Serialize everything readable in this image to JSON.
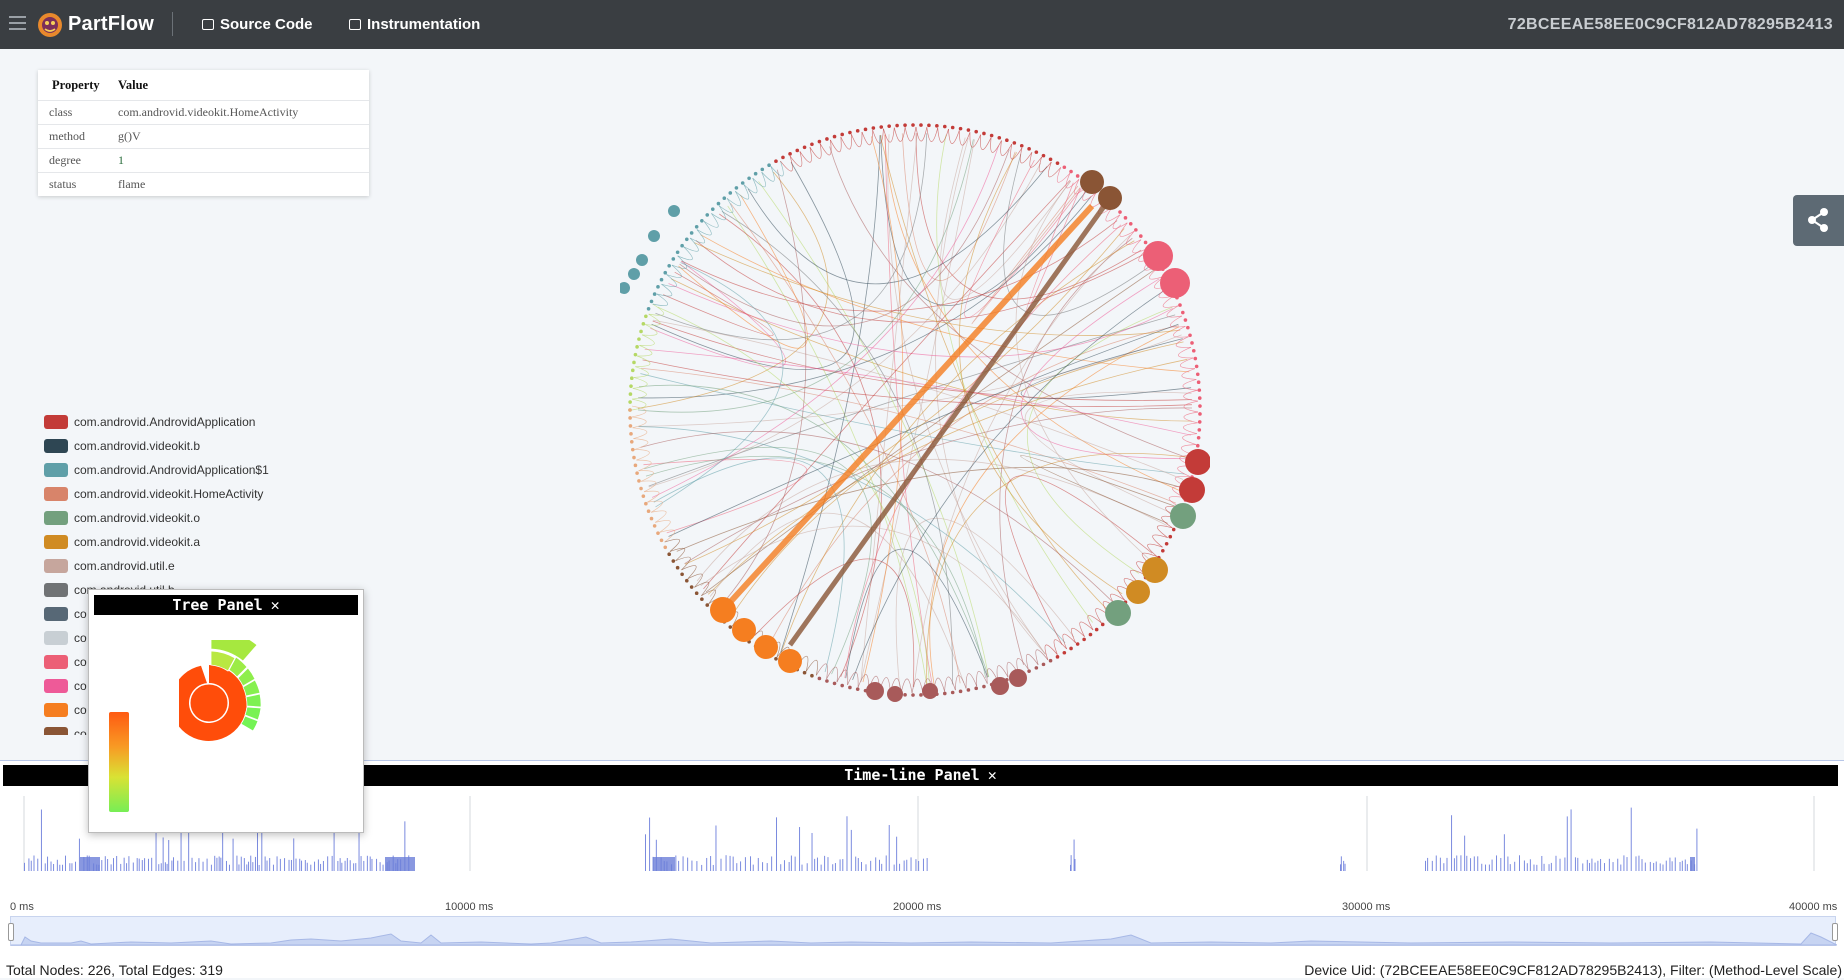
{
  "topbar": {
    "app_title": "PartFlow",
    "nav": [
      {
        "label": "Source Code",
        "icon": "file-code-icon"
      },
      {
        "label": "Instrumentation",
        "icon": "briefcase-icon"
      }
    ],
    "device_id": "72BCEEAE58EE0C9CF812AD78295B2413"
  },
  "properties": {
    "headers": {
      "key": "Property",
      "value": "Value"
    },
    "rows": [
      {
        "key": "class",
        "value": "com.androvid.videokit.HomeActivity"
      },
      {
        "key": "method",
        "value": "g()V"
      },
      {
        "key": "degree",
        "value": "1"
      },
      {
        "key": "status",
        "value": "flame"
      }
    ]
  },
  "legend": {
    "items": [
      {
        "label": "com.androvid.AndrovidApplication",
        "color": "#c33b38"
      },
      {
        "label": "com.androvid.videokit.b",
        "color": "#2e4653"
      },
      {
        "label": "com.androvid.AndrovidApplication$1",
        "color": "#5f9fa8"
      },
      {
        "label": "com.androvid.videokit.HomeActivity",
        "color": "#d8846a"
      },
      {
        "label": "com.androvid.videokit.o",
        "color": "#73a07e"
      },
      {
        "label": "com.androvid.videokit.a",
        "color": "#d08b23"
      },
      {
        "label": "com.androvid.util.e",
        "color": "#c6a69d"
      },
      {
        "label": "com.androvid.util.b",
        "color": "#707375"
      },
      {
        "label": "co",
        "color": "#576876"
      },
      {
        "label": "co",
        "color": "#c8cfd4"
      },
      {
        "label": "co",
        "color": "#ec5f76"
      },
      {
        "label": "co",
        "color": "#ee5a98"
      },
      {
        "label": "co",
        "color": "#f57e20"
      },
      {
        "label": "co",
        "color": "#8a5535"
      }
    ]
  },
  "tree_panel": {
    "title": "Tree Panel",
    "close": "✕"
  },
  "timeline": {
    "title": "Time-line Panel",
    "close": "✕",
    "ticks": [
      "0 ms",
      "10000 ms",
      "20000 ms",
      "30000 ms",
      "40000 ms"
    ]
  },
  "status": {
    "left": "Total Nodes: 226, Total Edges: 319",
    "right": "Device Uid: (72BCEEAE58EE0C9CF812AD78295B2413), Filter: (Method-Level Scale)"
  }
}
